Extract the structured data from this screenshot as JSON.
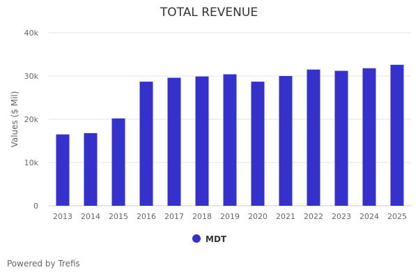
{
  "chart_data": {
    "type": "bar",
    "title": "TOTAL REVENUE",
    "xlabel": "",
    "ylabel": "Values ($ Mil)",
    "ylim": [
      0,
      40000
    ],
    "yticks": [
      0,
      10000,
      20000,
      30000,
      40000
    ],
    "ytick_labels": [
      "0",
      "10k",
      "20k",
      "30k",
      "40k"
    ],
    "grid": true,
    "legend_position": "bottom",
    "categories": [
      "2013",
      "2014",
      "2015",
      "2016",
      "2017",
      "2018",
      "2019",
      "2020",
      "2021",
      "2022",
      "2023",
      "2024",
      "2025"
    ],
    "series": [
      {
        "name": "MDT",
        "color": "#3431cc",
        "values": [
          16500,
          16800,
          20200,
          28700,
          29600,
          29900,
          30400,
          28700,
          30000,
          31500,
          31200,
          31800,
          32600
        ]
      }
    ]
  },
  "footer": "Powered by Trefis"
}
